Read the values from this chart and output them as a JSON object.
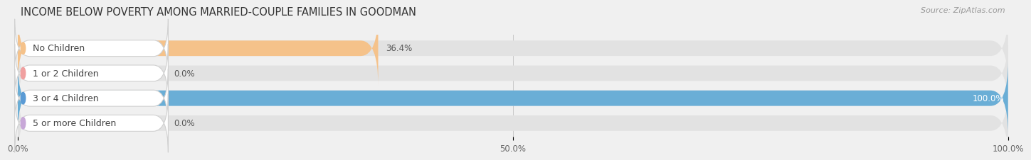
{
  "title": "INCOME BELOW POVERTY AMONG MARRIED-COUPLE FAMILIES IN GOODMAN",
  "source": "Source: ZipAtlas.com",
  "categories": [
    "No Children",
    "1 or 2 Children",
    "3 or 4 Children",
    "5 or more Children"
  ],
  "values": [
    36.4,
    0.0,
    100.0,
    0.0
  ],
  "bar_colors": [
    "#f5c28a",
    "#f0a0a0",
    "#6aaed6",
    "#c8a8d8"
  ],
  "label_dot_colors": [
    "#f5c28a",
    "#f0a0a0",
    "#5b9bd5",
    "#c8a8d8"
  ],
  "xlim": [
    0,
    100
  ],
  "xtick_values": [
    0.0,
    50.0,
    100.0
  ],
  "xtick_labels": [
    "0.0%",
    "50.0%",
    "100.0%"
  ],
  "bar_height": 0.62,
  "background_color": "#f0f0f0",
  "bar_bg_color": "#e2e2e2",
  "title_fontsize": 10.5,
  "source_fontsize": 8,
  "label_fontsize": 9,
  "value_fontsize": 8.5,
  "tick_fontsize": 8.5
}
